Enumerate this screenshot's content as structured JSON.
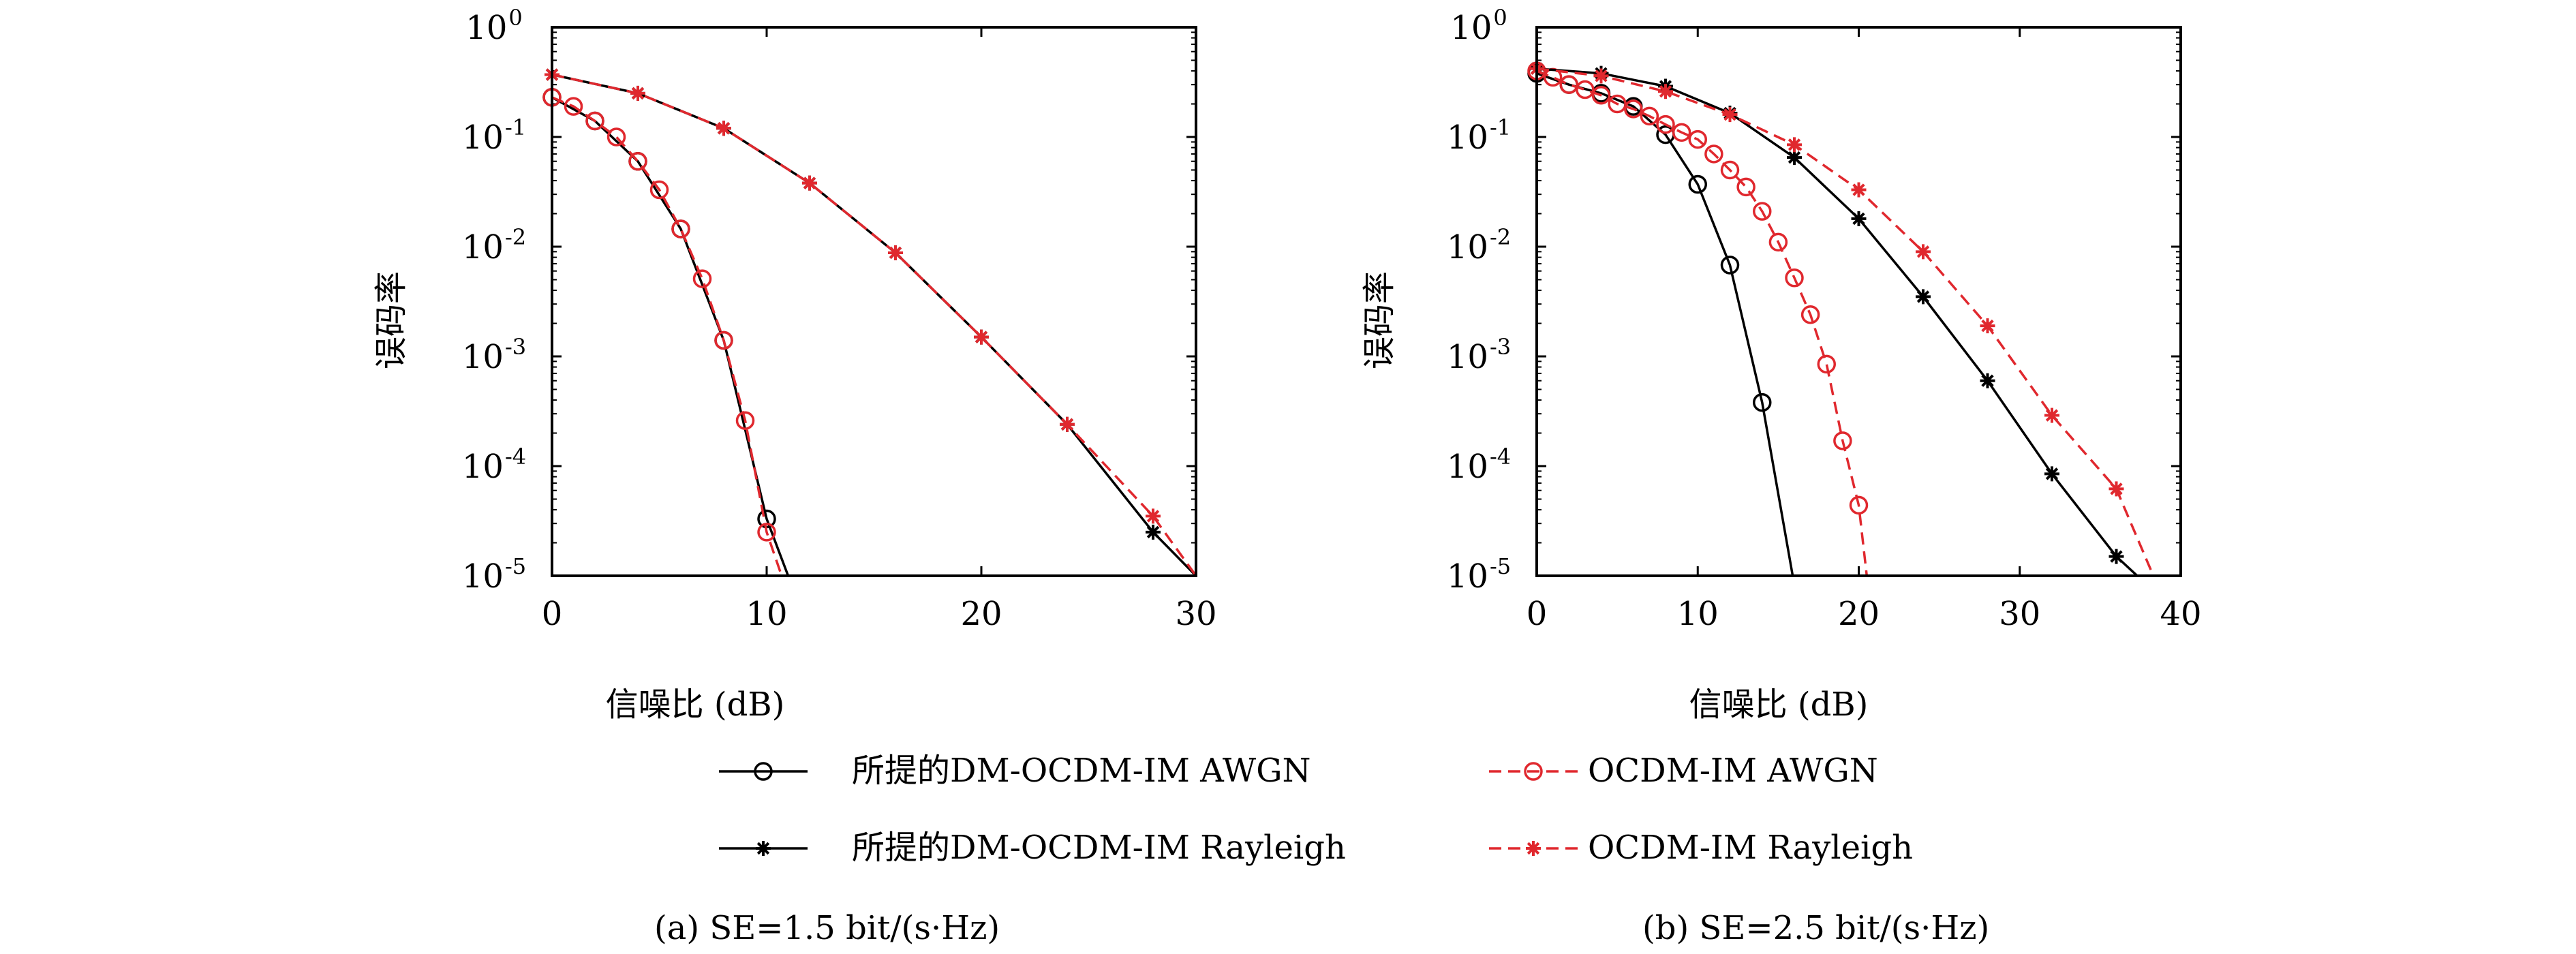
{
  "colors": {
    "proposed": "#000000",
    "ocdm": "#e0282e"
  },
  "legend": {
    "items": [
      {
        "label": "所提的DM-OCDM-IM AWGN",
        "style": "proposed",
        "marker": "circle"
      },
      {
        "label": "OCDM-IM AWGN",
        "style": "ocdm",
        "marker": "circle"
      },
      {
        "label": "所提的DM-OCDM-IM Rayleigh",
        "style": "proposed",
        "marker": "star"
      },
      {
        "label": "OCDM-IM Rayleigh",
        "style": "ocdm",
        "marker": "star"
      }
    ]
  },
  "chart_data": [
    {
      "type": "line",
      "caption": "(a) SE=1.5 bit/(s·Hz)",
      "xlabel": "信噪比 (dB)",
      "ylabel": "误码率",
      "xlim": [
        0,
        30
      ],
      "ylim_log10": [
        -5,
        0
      ],
      "yscale": "log",
      "grid": false,
      "xticks": [
        0,
        10,
        20,
        30
      ],
      "xtick_labels": [
        "0",
        "10",
        "20",
        "30"
      ],
      "yticks_exp": [
        0,
        -1,
        -2,
        -3,
        -4,
        -5
      ],
      "series": [
        {
          "name": "所提的DM-OCDM-IM AWGN",
          "style": "proposed",
          "marker": "circle",
          "x": [
            0,
            2,
            4,
            6,
            8,
            10,
            11
          ],
          "y": [
            0.23,
            0.14,
            0.06,
            0.0145,
            0.0014,
            3.3e-05,
            1e-05
          ]
        },
        {
          "name": "OCDM-IM AWGN",
          "style": "ocdm",
          "marker": "circle",
          "x": [
            0,
            1,
            2,
            3,
            4,
            5,
            6,
            7,
            8,
            9,
            10,
            10.7
          ],
          "y": [
            0.23,
            0.19,
            0.14,
            0.1,
            0.06,
            0.033,
            0.0145,
            0.0051,
            0.0014,
            0.00026,
            2.5e-05,
            1e-05
          ]
        },
        {
          "name": "所提的DM-OCDM-IM Rayleigh",
          "style": "proposed",
          "marker": "star",
          "x": [
            0,
            4,
            8,
            12,
            16,
            20,
            24,
            28,
            30
          ],
          "y": [
            0.37,
            0.25,
            0.12,
            0.038,
            0.0088,
            0.0015,
            0.00024,
            2.5e-05,
            1e-05
          ]
        },
        {
          "name": "OCDM-IM Rayleigh",
          "style": "ocdm",
          "marker": "star",
          "x": [
            0,
            4,
            8,
            12,
            16,
            20,
            24,
            28,
            30
          ],
          "y": [
            0.37,
            0.25,
            0.12,
            0.038,
            0.0088,
            0.0015,
            0.00024,
            3.5e-05,
            1e-05
          ]
        }
      ]
    },
    {
      "type": "line",
      "caption": "(b) SE=2.5 bit/(s·Hz)",
      "xlabel": "信噪比 (dB)",
      "ylabel": "误码率",
      "xlim": [
        0,
        40
      ],
      "ylim_log10": [
        -5,
        0
      ],
      "yscale": "log",
      "grid": false,
      "xticks": [
        0,
        10,
        20,
        30,
        40
      ],
      "xtick_labels": [
        "0",
        "10",
        "20",
        "30",
        "40"
      ],
      "yticks_exp": [
        0,
        -1,
        -2,
        -3,
        -4,
        -5
      ],
      "series": [
        {
          "name": "所提的DM-OCDM-IM AWGN",
          "style": "proposed",
          "marker": "circle",
          "x": [
            0,
            2,
            4,
            6,
            8,
            10,
            12,
            14,
            15.9
          ],
          "y": [
            0.38,
            0.3,
            0.25,
            0.19,
            0.105,
            0.037,
            0.0068,
            0.00038,
            1e-05
          ]
        },
        {
          "name": "OCDM-IM AWGN",
          "style": "ocdm",
          "marker": "circle",
          "x": [
            0,
            1,
            2,
            3,
            4,
            5,
            6,
            7,
            8,
            9,
            10,
            11,
            12,
            13,
            14,
            15,
            16,
            17,
            18,
            19,
            20,
            20.5
          ],
          "y": [
            0.4,
            0.35,
            0.3,
            0.27,
            0.24,
            0.2,
            0.18,
            0.155,
            0.13,
            0.11,
            0.095,
            0.07,
            0.05,
            0.035,
            0.021,
            0.011,
            0.0052,
            0.0024,
            0.00085,
            0.00017,
            4.4e-05,
            1e-05
          ]
        },
        {
          "name": "所提的DM-OCDM-IM Rayleigh",
          "style": "proposed",
          "marker": "star",
          "x": [
            0,
            4,
            8,
            12,
            16,
            20,
            24,
            28,
            32,
            36,
            37.3
          ],
          "y": [
            0.42,
            0.38,
            0.29,
            0.165,
            0.065,
            0.018,
            0.0035,
            0.0006,
            8.5e-05,
            1.5e-05,
            1e-05
          ]
        },
        {
          "name": "OCDM-IM Rayleigh",
          "style": "ocdm",
          "marker": "star",
          "x": [
            0,
            4,
            8,
            12,
            16,
            20,
            24,
            28,
            32,
            36,
            38.3
          ],
          "y": [
            0.42,
            0.36,
            0.26,
            0.16,
            0.085,
            0.033,
            0.009,
            0.0019,
            0.00029,
            6.2e-05,
            1e-05
          ]
        }
      ]
    }
  ]
}
